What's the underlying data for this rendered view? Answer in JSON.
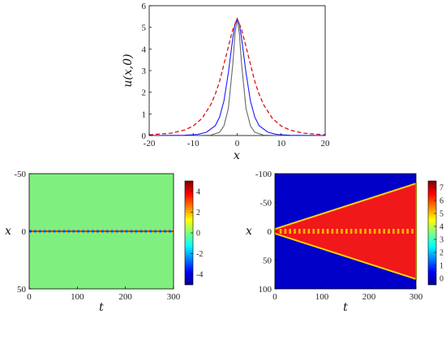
{
  "colors": {
    "series_gray": "#666666",
    "series_blue": "#1a1aff",
    "series_red_dashed": "#e01010",
    "axis": "#000000",
    "background_field": "#7ff07f",
    "outside_field": "#0000c8",
    "inside_field": "#f01818",
    "front_edge": "#ffd000"
  },
  "chart_data": [
    {
      "type": "line",
      "xlabel": "x",
      "ylabel": "u(x,0)",
      "xlim": [
        -20,
        20
      ],
      "ylim": [
        0,
        6
      ],
      "xticks": [
        "-20",
        "-10",
        "0",
        "10",
        "20"
      ],
      "yticks": [
        "0",
        "1",
        "2",
        "3",
        "4",
        "5",
        "6"
      ],
      "grid": false,
      "series": [
        {
          "color_key": "series_gray",
          "style": "solid",
          "x": [
            -20,
            -10,
            -6,
            -4,
            -3,
            -2,
            -1,
            -0.5,
            0,
            0.5,
            1,
            2,
            3,
            4,
            6,
            10,
            20
          ],
          "y": [
            0.0,
            0.0,
            0.02,
            0.15,
            0.45,
            1.25,
            3.3,
            4.7,
            5.4,
            4.7,
            3.3,
            1.25,
            0.45,
            0.15,
            0.02,
            0.0,
            0.0
          ]
        },
        {
          "color_key": "series_blue",
          "style": "solid",
          "x": [
            -20,
            -12,
            -9,
            -7,
            -5,
            -4,
            -3,
            -2,
            -1,
            -0.5,
            0,
            0.5,
            1,
            2,
            3,
            4,
            5,
            7,
            9,
            12,
            20
          ],
          "y": [
            0.0,
            0.01,
            0.05,
            0.15,
            0.45,
            0.85,
            1.6,
            2.9,
            4.5,
            5.15,
            5.4,
            5.15,
            4.5,
            2.9,
            1.6,
            0.85,
            0.45,
            0.15,
            0.05,
            0.01,
            0.0
          ]
        },
        {
          "color_key": "series_red_dashed",
          "style": "dashed",
          "x": [
            -20,
            -15,
            -12,
            -10,
            -8,
            -6,
            -5,
            -4,
            -3,
            -2,
            -1,
            0,
            1,
            2,
            3,
            4,
            5,
            6,
            8,
            10,
            12,
            15,
            20
          ],
          "y": [
            0.03,
            0.11,
            0.25,
            0.44,
            0.79,
            1.42,
            1.9,
            2.5,
            3.3,
            4.1,
            4.9,
            5.4,
            4.9,
            4.1,
            3.3,
            2.5,
            1.9,
            1.42,
            0.79,
            0.44,
            0.25,
            0.11,
            0.03
          ]
        }
      ]
    },
    {
      "type": "heatmap",
      "xlabel": "t",
      "ylabel": "x",
      "xlim": [
        0,
        300
      ],
      "ylim": [
        -50,
        50
      ],
      "y_reversed": true,
      "xticks": [
        "0",
        "100",
        "200",
        "300"
      ],
      "yticks": [
        "-50",
        "0",
        "50"
      ],
      "colorbar": {
        "min": -5,
        "max": 5,
        "ticks": [
          "4",
          "2",
          "0",
          "-2",
          "-4"
        ],
        "colormap": "jet"
      },
      "description_values": {
        "oscillation_period_t": 10,
        "amplitude": 5.4,
        "half_width_x": 2
      }
    },
    {
      "type": "heatmap",
      "xlabel": "t",
      "ylabel": "x",
      "xlim": [
        0,
        300
      ],
      "ylim": [
        -100,
        100
      ],
      "y_reversed": true,
      "xticks": [
        "0",
        "100",
        "200",
        "300"
      ],
      "yticks": [
        "-100",
        "-50",
        "0",
        "50",
        "100"
      ],
      "colorbar": {
        "min": -0.5,
        "max": 7.5,
        "ticks": [
          "7",
          "6",
          "5",
          "4",
          "3",
          "2",
          "1",
          "0"
        ],
        "colormap": "jet"
      },
      "description_values": {
        "front_at_t300": 83,
        "inside_value": 7,
        "outside_value": 0
      }
    }
  ]
}
